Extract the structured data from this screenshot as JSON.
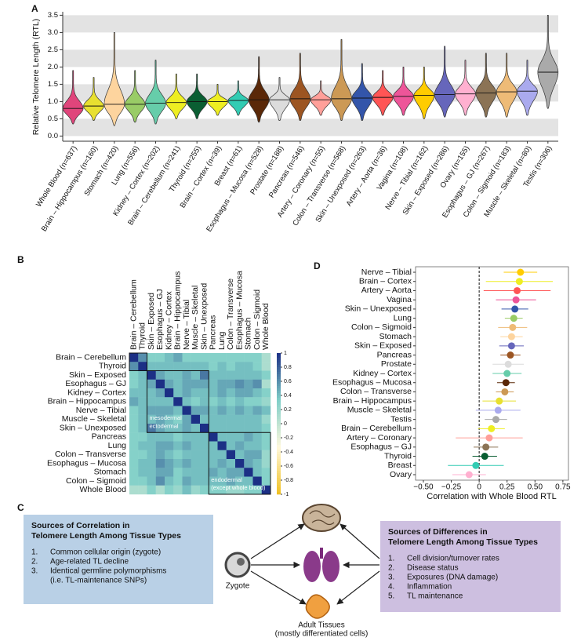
{
  "panel_labels": [
    "A",
    "B",
    "C",
    "D"
  ],
  "chart_data": [
    {
      "type": "violin",
      "y_label": "Relative Telomere Length (RTL)",
      "categories": [
        "Whole Blood (n=637)",
        "Brain – Hippocampus (n=160)",
        "Stomach (n=420)",
        "Lung (n=556)",
        "Kidney – Cortex (n=202)",
        "Brain – Cerebellum (n=241)",
        "Thyroid (n=255)",
        "Brain – Cortex (n=39)",
        "Breast (n=61)",
        "Esophagus – Mucosa (n=528)",
        "Prostate (n=188)",
        "Pancreas (n=546)",
        "Artery – Coronary (n=55)",
        "Colon – Transverse (n=568)",
        "Skin – Unexposed (n=263)",
        "Artery – Aorta (n=36)",
        "Vagina (n=108)",
        "Nerve – Tibial (n=162)",
        "Skin – Exposed (n=286)",
        "Ovary (n=155)",
        "Esophagus – GJ (n=267)",
        "Colon – Sigmoid (n=183)",
        "Muscle – Skeletal (n=80)",
        "Testis (n=306)"
      ],
      "colors": [
        "#e0457b",
        "#e8e030",
        "#fdd49e",
        "#99cc66",
        "#66cdaa",
        "#eeee22",
        "#0a5e32",
        "#eeee22",
        "#33ccb3",
        "#5a2808",
        "#dcdcdc",
        "#9c5522",
        "#ff9f99",
        "#cc9955",
        "#3355aa",
        "#ff5555",
        "#ee5599",
        "#ffcc00",
        "#6666bb",
        "#ffb0d0",
        "#8b7355",
        "#eebb77",
        "#aaaaee",
        "#aaaaaa"
      ],
      "medians": [
        0.8,
        0.87,
        0.92,
        0.92,
        0.95,
        0.97,
        1.0,
        1.0,
        1.03,
        1.05,
        1.05,
        1.08,
        1.05,
        1.08,
        1.1,
        1.12,
        1.15,
        1.18,
        1.2,
        1.22,
        1.25,
        1.28,
        1.3,
        1.85
      ],
      "mins": [
        0.35,
        0.45,
        0.3,
        0.4,
        0.35,
        0.5,
        0.5,
        0.6,
        0.6,
        0.4,
        0.45,
        0.45,
        0.6,
        0.45,
        0.45,
        0.6,
        0.6,
        0.5,
        0.55,
        0.6,
        0.55,
        0.55,
        0.6,
        0.8
      ],
      "maxs": [
        1.9,
        1.7,
        3.0,
        1.9,
        2.2,
        1.8,
        1.8,
        1.5,
        1.6,
        2.3,
        1.7,
        2.4,
        1.6,
        2.8,
        2.1,
        1.9,
        2.0,
        2.0,
        2.6,
        2.2,
        2.4,
        2.4,
        2.2,
        3.5
      ],
      "ylim": [
        -0.15,
        3.6
      ],
      "yticks": [
        {
          "value": 0,
          "label": "0.0"
        },
        {
          "value": 0.5,
          "label": "0.5"
        },
        {
          "value": 1,
          "label": "1.0"
        },
        {
          "value": 1.5,
          "label": "1.5"
        },
        {
          "value": 2,
          "label": "2.0"
        },
        {
          "value": 2.5,
          "label": "2.5"
        },
        {
          "value": 3,
          "label": "3.0"
        },
        {
          "value": 3.5,
          "label": "3.5"
        }
      ]
    },
    {
      "type": "heatmap",
      "rows": [
        "Brain – Cerebellum",
        "Thyroid",
        "Skin – Exposed",
        "Esophagus – GJ",
        "Kidney – Cortex",
        "Brain – Hippocampus",
        "Nerve – Tibial",
        "Muscle – Skeletal",
        "Skin – Unexposed",
        "Pancreas",
        "Lung",
        "Colon – Transverse",
        "Esophagus – Mucosa",
        "Stomach",
        "Colon – Sigmoid",
        "Whole Blood"
      ],
      "columns": [
        "Brain – Cerebellum",
        "Thyroid",
        "Skin – Exposed",
        "Esophagus – GJ",
        "Kidney – Cortex",
        "Brain – Hippocampus",
        "Nerve – Tibial",
        "Muscle – Skeletal",
        "Skin – Unexposed",
        "Pancreas",
        "Lung",
        "Colon – Transverse",
        "Esophagus – Mucosa",
        "Stomach",
        "Colon – Sigmoid",
        "Whole Blood"
      ],
      "values": [
        [
          1,
          0.6,
          0.3,
          0.3,
          0.4,
          0.5,
          0.3,
          0.3,
          0.3,
          0.3,
          0.3,
          0.3,
          0.3,
          0.3,
          0.3,
          0.1
        ],
        [
          0.6,
          1,
          0.4,
          0.4,
          0.4,
          0.4,
          0.4,
          0.4,
          0.4,
          0.3,
          0.4,
          0.3,
          0.4,
          0.4,
          0.3,
          0.1
        ],
        [
          0.3,
          0.4,
          1,
          0.5,
          0.4,
          0.4,
          0.5,
          0.4,
          0.7,
          0.4,
          0.4,
          0.4,
          0.4,
          0.4,
          0.4,
          0.3
        ],
        [
          0.3,
          0.4,
          0.5,
          1,
          0.5,
          0.4,
          0.5,
          0.5,
          0.5,
          0.4,
          0.5,
          0.5,
          0.6,
          0.5,
          0.6,
          0.1
        ],
        [
          0.4,
          0.4,
          0.4,
          0.5,
          1,
          0.4,
          0.5,
          0.4,
          0.4,
          0.4,
          0.5,
          0.4,
          0.5,
          0.5,
          0.4,
          0.3
        ],
        [
          0.5,
          0.4,
          0.4,
          0.4,
          0.4,
          1,
          0.4,
          0.3,
          0.4,
          0.3,
          0.4,
          0.3,
          0.4,
          0.3,
          0.3,
          0.2
        ],
        [
          0.3,
          0.4,
          0.5,
          0.5,
          0.5,
          0.4,
          1,
          0.5,
          0.5,
          0.4,
          0.5,
          0.4,
          0.5,
          0.4,
          0.5,
          0.4
        ],
        [
          0.3,
          0.4,
          0.4,
          0.5,
          0.4,
          0.3,
          0.5,
          1,
          0.4,
          0.4,
          0.4,
          0.4,
          0.4,
          0.4,
          0.4,
          0.2
        ],
        [
          0.3,
          0.4,
          0.7,
          0.5,
          0.4,
          0.4,
          0.5,
          0.4,
          1,
          0.4,
          0.4,
          0.4,
          0.4,
          0.4,
          0.4,
          0.3
        ],
        [
          0.3,
          0.3,
          0.4,
          0.4,
          0.4,
          0.3,
          0.4,
          0.4,
          0.4,
          1,
          0.4,
          0.4,
          0.4,
          0.5,
          0.4,
          0.3
        ],
        [
          0.3,
          0.4,
          0.4,
          0.5,
          0.5,
          0.4,
          0.5,
          0.4,
          0.4,
          0.4,
          1,
          0.4,
          0.5,
          0.4,
          0.4,
          0.3
        ],
        [
          0.3,
          0.3,
          0.4,
          0.5,
          0.4,
          0.3,
          0.4,
          0.4,
          0.4,
          0.4,
          0.4,
          1,
          0.4,
          0.5,
          0.5,
          0.2
        ],
        [
          0.3,
          0.4,
          0.4,
          0.6,
          0.5,
          0.4,
          0.5,
          0.4,
          0.4,
          0.4,
          0.5,
          0.4,
          1,
          0.5,
          0.4,
          0.2
        ],
        [
          0.3,
          0.4,
          0.4,
          0.5,
          0.5,
          0.3,
          0.4,
          0.4,
          0.4,
          0.5,
          0.4,
          0.5,
          0.5,
          1,
          0.4,
          0.3
        ],
        [
          0.3,
          0.3,
          0.4,
          0.6,
          0.4,
          0.3,
          0.5,
          0.4,
          0.4,
          0.4,
          0.4,
          0.5,
          0.4,
          0.4,
          1,
          0.3
        ],
        [
          0.1,
          0.1,
          0.3,
          0.1,
          0.3,
          0.2,
          0.4,
          0.2,
          0.3,
          0.3,
          0.3,
          0.2,
          0.2,
          0.3,
          0.3,
          1
        ]
      ],
      "zlim": [
        -1,
        1
      ],
      "zticks": [
        1,
        0.8,
        0.6,
        0.4,
        0.2,
        0,
        -0.2,
        -0.4,
        -0.6,
        -0.8,
        -1
      ],
      "colorscale": [
        "#f0c020",
        "#fff8dc",
        "#7fcfc8",
        "#1c2f85"
      ],
      "annotations": [
        "mesodermal",
        "ectodermal",
        "endodermal",
        "(except whole blood)"
      ]
    },
    {
      "type": "dot_error",
      "x_label": "Correlation with Whole Blood RTL",
      "categories": [
        "Nerve – Tibial",
        "Brain – Cortex",
        "Artery – Aorta",
        "Vagina",
        "Skin – Unexposed",
        "Lung",
        "Colon – Sigmoid",
        "Stomach",
        "Skin – Exposed",
        "Pancreas",
        "Prostate",
        "Kidney – Cortex",
        "Esophagus – Mucosa",
        "Colon – Transverse",
        "Brain – Hippocampus",
        "Muscle – Skeletal",
        "Testis",
        "Brain – Cerebellum",
        "Artery – Coronary",
        "Esophagus – GJ",
        "Thyroid",
        "Breast",
        "Ovary"
      ],
      "values": [
        0.37,
        0.36,
        0.34,
        0.33,
        0.32,
        0.31,
        0.3,
        0.29,
        0.29,
        0.28,
        0.26,
        0.25,
        0.24,
        0.23,
        0.18,
        0.17,
        0.15,
        0.11,
        0.09,
        0.06,
        0.05,
        -0.03,
        -0.09
      ],
      "errors": [
        0.15,
        0.3,
        0.3,
        0.18,
        0.12,
        0.08,
        0.13,
        0.1,
        0.11,
        0.09,
        0.14,
        0.13,
        0.08,
        0.08,
        0.15,
        0.2,
        0.1,
        0.12,
        0.3,
        0.11,
        0.11,
        0.25,
        0.15
      ],
      "colors": [
        "#ffcc00",
        "#eeee22",
        "#ff5555",
        "#ee5599",
        "#3355aa",
        "#99cc66",
        "#eebb77",
        "#fdd49e",
        "#6666bb",
        "#9c5522",
        "#dcdcdc",
        "#66cdaa",
        "#5a2808",
        "#cc9955",
        "#e8e030",
        "#aaaaee",
        "#aaaaaa",
        "#eeee22",
        "#ff9f99",
        "#8b7355",
        "#0a5e32",
        "#33ccb3",
        "#ffb0d0"
      ],
      "xlim": [
        -0.57,
        0.8
      ],
      "xticks": [
        {
          "value": -0.5,
          "label": "−0.50"
        },
        {
          "value": -0.25,
          "label": "−0.25"
        },
        0,
        0.25,
        {
          "value": 0.5,
          "label": "0.50"
        },
        0.75
      ]
    }
  ],
  "diagram": {
    "left_box": {
      "title": [
        "Sources of Correlation in",
        "Telomere Length Among Tissue Types"
      ],
      "items": [
        {
          "num": "1.",
          "lines": [
            "Common cellular origin (zygote)"
          ]
        },
        {
          "num": "2.",
          "lines": [
            "Age-related TL decline"
          ]
        },
        {
          "num": "3.",
          "lines": [
            "Identical germline polymorphisms",
            "(i.e. TL-maintenance SNPs)"
          ]
        }
      ]
    },
    "right_box": {
      "title": [
        "Sources of Differences in",
        "Telomere Length Among Tissue Types"
      ],
      "items": [
        {
          "num": "1.",
          "lines": [
            "Cell division/turnover rates"
          ]
        },
        {
          "num": "2.",
          "lines": [
            "Disease status"
          ]
        },
        {
          "num": "3.",
          "lines": [
            "Exposures  (DNA damage)"
          ]
        },
        {
          "num": "4.",
          "lines": [
            "Inflammation"
          ]
        },
        {
          "num": "5.",
          "lines": [
            "TL maintenance"
          ]
        }
      ]
    },
    "zygote": "Zygote",
    "tissues": [
      "Adult Tissues",
      "(mostly differentiated cells)"
    ]
  }
}
